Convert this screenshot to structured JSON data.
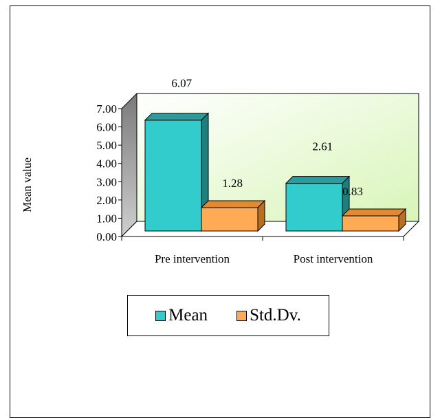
{
  "chart_data": {
    "type": "bar",
    "categories": [
      "Pre intervention",
      "Post intervention"
    ],
    "series": [
      {
        "name": "Mean",
        "values": [
          6.07,
          2.61
        ],
        "labels": [
          "6.07",
          "2.61"
        ]
      },
      {
        "name": "Std.Dv.",
        "values": [
          1.28,
          0.83
        ],
        "labels": [
          "1.28",
          "0.83"
        ]
      }
    ],
    "ylabel": "Mean value",
    "ylim": [
      0,
      7
    ],
    "yticks": [
      "0.00",
      "1.00",
      "2.00",
      "3.00",
      "4.00",
      "5.00",
      "6.00",
      "7.00"
    ],
    "legend_position": "bottom",
    "three_d": true
  },
  "colors": {
    "mean": "#33CCCC",
    "mean_top": "#2A9C9C",
    "mean_side": "#1E7F7F",
    "std": "#FFAA55",
    "std_top": "#E08A33",
    "std_side": "#B86F22",
    "wall": "#EEFFD8",
    "side_wall": "#A8A8A8",
    "floor": "#FFFFFF"
  }
}
